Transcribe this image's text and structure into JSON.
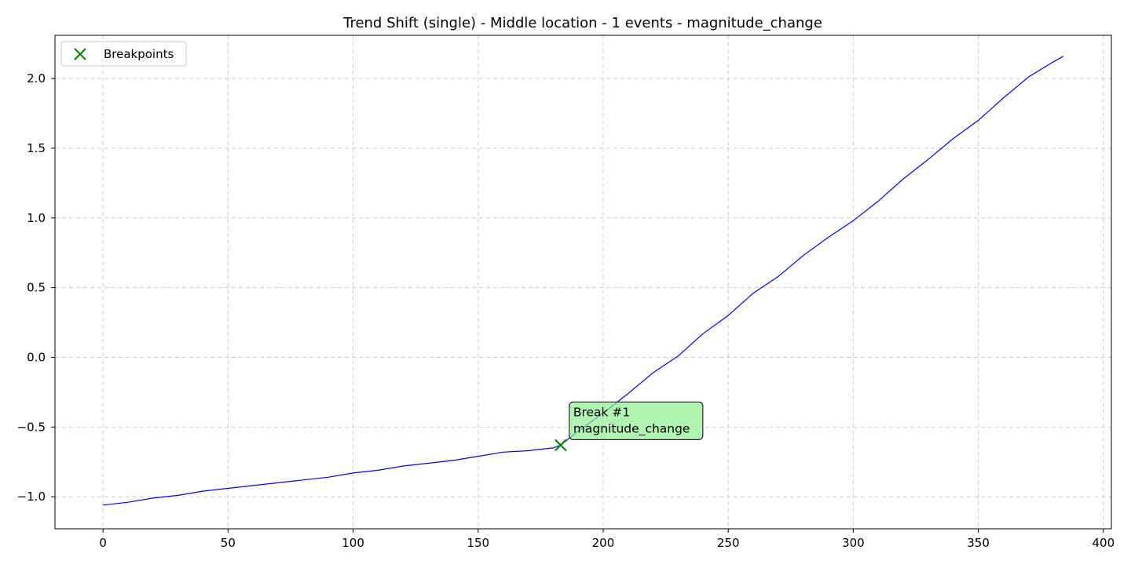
{
  "chart_data": {
    "type": "line",
    "title": "Trend Shift (single) - Middle location - 1 events - magnitude_change",
    "xlabel": "",
    "ylabel": "",
    "xlim": [
      -19.2,
      403.2
    ],
    "ylim": [
      -1.23,
      2.31
    ],
    "x_ticks": [
      0,
      50,
      100,
      150,
      200,
      250,
      300,
      350,
      400
    ],
    "y_ticks": [
      -1.0,
      -0.5,
      0.0,
      0.5,
      1.0,
      1.5,
      2.0
    ],
    "x_tick_labels": [
      "0",
      "50",
      "100",
      "150",
      "200",
      "250",
      "300",
      "350",
      "400"
    ],
    "y_tick_labels": [
      "−1.0",
      "−0.5",
      "0.0",
      "0.5",
      "1.0",
      "1.5",
      "2.0"
    ],
    "grid": true,
    "legend_position": "top-left",
    "legend": [
      {
        "label": "Breakpoints",
        "marker": "x",
        "color": "#008000"
      }
    ],
    "series": [
      {
        "color": "#0000ff",
        "x": [
          0,
          10,
          20,
          30,
          40,
          50,
          60,
          70,
          80,
          90,
          100,
          110,
          120,
          130,
          140,
          150,
          160,
          170,
          180,
          183,
          190,
          200,
          210,
          220,
          230,
          240,
          250,
          260,
          270,
          280,
          290,
          300,
          310,
          320,
          330,
          340,
          350,
          360,
          370,
          380,
          384
        ],
        "y": [
          -1.06,
          -1.04,
          -1.01,
          -0.99,
          -0.96,
          -0.94,
          -0.92,
          -0.9,
          -0.88,
          -0.86,
          -0.83,
          -0.81,
          -0.78,
          -0.76,
          -0.74,
          -0.71,
          -0.68,
          -0.67,
          -0.65,
          -0.63,
          -0.53,
          -0.4,
          -0.26,
          -0.11,
          0.01,
          0.17,
          0.3,
          0.46,
          0.58,
          0.73,
          0.86,
          0.98,
          1.12,
          1.28,
          1.42,
          1.57,
          1.7,
          1.86,
          2.01,
          2.12,
          2.16
        ]
      }
    ],
    "breakpoints": [
      {
        "x": 183,
        "y": -0.63,
        "label_line1": "Break #1",
        "label_line2": "magnitude_change"
      }
    ],
    "annotation_color": "#90ee90",
    "grid_color": "#cccccc"
  }
}
